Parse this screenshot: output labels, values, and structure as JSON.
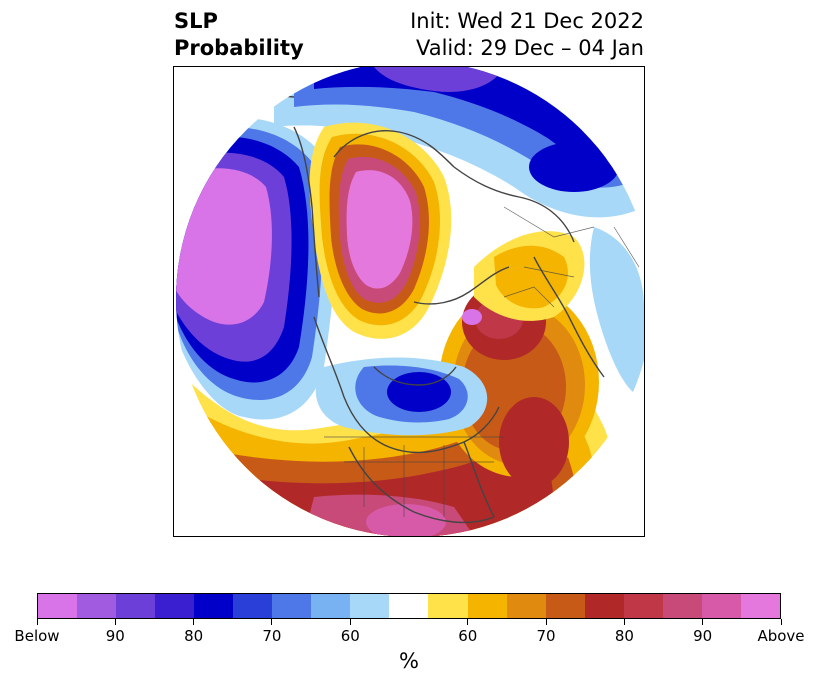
{
  "title": {
    "left_line1": "SLP",
    "left_line2": "Probability",
    "right_line1": "Init: Wed 21 Dec 2022",
    "right_line2": "Valid: 29 Dec – 04 Jan"
  },
  "map": {
    "projection": "north-polar-stereographic",
    "region": "Northern Hemisphere"
  },
  "colorbar": {
    "unit_label": "%",
    "colors": [
      "#d874e8",
      "#a05be0",
      "#6c3fd8",
      "#3a1fd0",
      "#0000c8",
      "#2a3ed8",
      "#4e78e8",
      "#78b2f2",
      "#a8d8f8",
      "#ffffff",
      "#ffe14a",
      "#f4b400",
      "#e08a10",
      "#c85a18",
      "#b02828",
      "#c03848",
      "#c84a78",
      "#d65aa8",
      "#e478dc"
    ],
    "tick_labels": [
      "Below",
      "90",
      "80",
      "70",
      "60",
      "60",
      "70",
      "80",
      "90",
      "Above"
    ],
    "tick_segment_index": [
      0,
      2,
      4,
      6,
      8,
      11,
      13,
      15,
      17,
      19
    ]
  },
  "colors": {
    "strong_below": "#d874e8",
    "below": "#0000c8",
    "weak_below": "#a8d8f8",
    "weak_above": "#ffe14a",
    "above": "#b02828",
    "strong_above": "#e478dc",
    "coastline": "#444444"
  }
}
